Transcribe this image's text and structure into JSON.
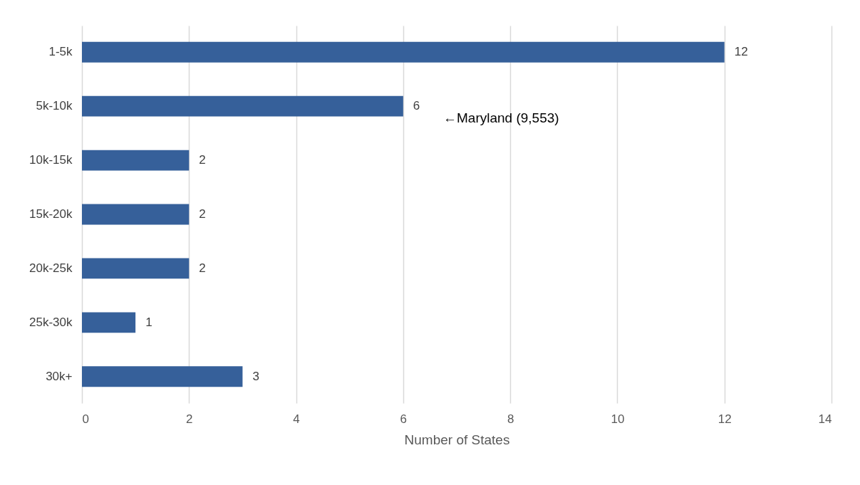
{
  "chart_data": {
    "type": "bar",
    "orientation": "horizontal",
    "categories": [
      "1-5k",
      "5k-10k",
      "10k-15k",
      "15k-20k",
      "20k-25k",
      "25k-30k",
      "30k+"
    ],
    "values": [
      12,
      6,
      2,
      2,
      2,
      1,
      3
    ],
    "color": "#36609a",
    "data_labels": true,
    "xlim": [
      0,
      14
    ],
    "xticks": [
      0,
      2,
      4,
      6,
      8,
      10,
      12,
      14
    ],
    "grid": "x",
    "xlabel": "Number of States",
    "annotations": [
      "←Maryland (9,553)"
    ]
  }
}
